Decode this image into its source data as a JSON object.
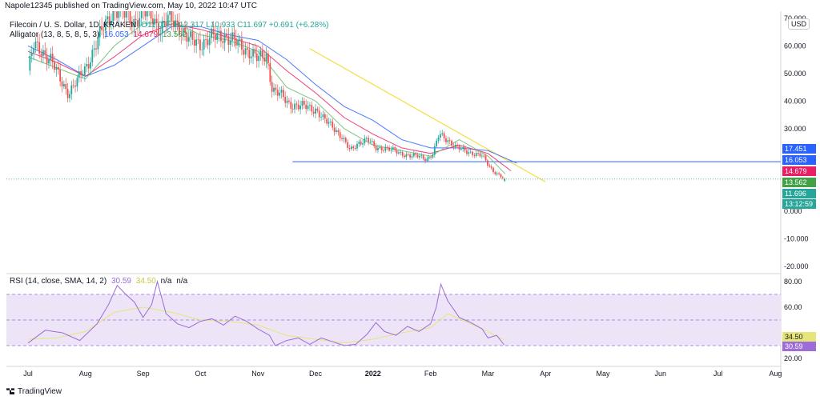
{
  "header": {
    "text": "Napole12345 published on TradingView.com, May 10, 2022 10:47 UTC"
  },
  "footer": {
    "brand": "TradingView"
  },
  "legend": {
    "symbol": "Filecoin / U. S. Dollar, 1D, KRAKEN",
    "ohlc": "O11.016 H12.317 L10.933 C11.697 +0.691 (+6.28%)",
    "alligator_label": "Alligator (13, 8, 5, 8, 5, 3)",
    "alligator_values": [
      "16.053",
      "14.679",
      "13.562"
    ],
    "rsi_label": "RSI (14, close, SMA, 14, 2)",
    "rsi_values": [
      "30.59",
      "34.50",
      "n/a",
      "n/a"
    ]
  },
  "currency_button": "USD",
  "colors": {
    "up": "#26a69a",
    "down": "#ef5350",
    "jaw": "#2962ff",
    "teeth": "#e91e63",
    "lips": "#66bb6a",
    "trendline": "#f5e050",
    "hline": "#2962ff",
    "rsi": "#9c6cd8",
    "rsi_ma": "#e5e57a",
    "rsi_band": "#ede5f7"
  },
  "chart_data": [
    {
      "type": "line",
      "panel": "price",
      "title": "Filecoin / U. S. Dollar, 1D, KRAKEN",
      "y_ticks": [
        "70.000",
        "60.000",
        "50.000",
        "40.000",
        "30.000",
        "0.000",
        "-10.000",
        "-20.000"
      ],
      "ylim": [
        -22,
        72
      ],
      "x_ticks": [
        "Jul",
        "Aug",
        "Sep",
        "Oct",
        "Nov",
        "Dec",
        "2022",
        "Feb",
        "Mar",
        "Apr",
        "May",
        "Jun",
        "Jul",
        "Aug"
      ],
      "price_labels": [
        {
          "text": "17.451",
          "value": 17.451,
          "color": "#2962ff"
        },
        {
          "text": "16.053",
          "value": 16.053,
          "color": "#2962ff"
        },
        {
          "text": "14.679",
          "value": 14.679,
          "color": "#e91e63"
        },
        {
          "text": "13.562",
          "value": 13.562,
          "color": "#43a047"
        },
        {
          "text": "11.696",
          "value": 11.696,
          "color": "#26a69a"
        },
        {
          "text": "13:12:59",
          "value": 9.6,
          "color": "#26a69a"
        }
      ],
      "close_series": [
        {
          "m": 0.0,
          "v": 51
        },
        {
          "m": 0.1,
          "v": 60
        },
        {
          "m": 0.25,
          "v": 58
        },
        {
          "m": 0.4,
          "v": 55
        },
        {
          "m": 0.55,
          "v": 48
        },
        {
          "m": 0.7,
          "v": 43
        },
        {
          "m": 0.85,
          "v": 47
        },
        {
          "m": 1.0,
          "v": 52
        },
        {
          "m": 1.15,
          "v": 59
        },
        {
          "m": 1.3,
          "v": 66
        },
        {
          "m": 1.45,
          "v": 72
        },
        {
          "m": 1.55,
          "v": 73
        },
        {
          "m": 1.7,
          "v": 71
        },
        {
          "m": 1.85,
          "v": 69
        },
        {
          "m": 2.0,
          "v": 72
        },
        {
          "m": 2.15,
          "v": 71
        },
        {
          "m": 2.3,
          "v": 66
        },
        {
          "m": 2.45,
          "v": 70
        },
        {
          "m": 2.6,
          "v": 68
        },
        {
          "m": 2.8,
          "v": 62
        },
        {
          "m": 3.0,
          "v": 61
        },
        {
          "m": 3.2,
          "v": 63
        },
        {
          "m": 3.4,
          "v": 64
        },
        {
          "m": 3.55,
          "v": 62
        },
        {
          "m": 3.7,
          "v": 60
        },
        {
          "m": 3.85,
          "v": 58
        },
        {
          "m": 4.0,
          "v": 55
        },
        {
          "m": 4.15,
          "v": 57
        },
        {
          "m": 4.25,
          "v": 44
        },
        {
          "m": 4.4,
          "v": 42
        },
        {
          "m": 4.55,
          "v": 39
        },
        {
          "m": 4.7,
          "v": 38
        },
        {
          "m": 4.85,
          "v": 38
        },
        {
          "m": 5.0,
          "v": 37
        },
        {
          "m": 5.15,
          "v": 33
        },
        {
          "m": 5.3,
          "v": 31
        },
        {
          "m": 5.45,
          "v": 27
        },
        {
          "m": 5.6,
          "v": 22
        },
        {
          "m": 5.75,
          "v": 25
        },
        {
          "m": 5.9,
          "v": 26
        },
        {
          "m": 6.05,
          "v": 23
        },
        {
          "m": 6.2,
          "v": 23
        },
        {
          "m": 6.35,
          "v": 22
        },
        {
          "m": 6.5,
          "v": 21
        },
        {
          "m": 6.65,
          "v": 20
        },
        {
          "m": 6.8,
          "v": 20
        },
        {
          "m": 6.95,
          "v": 19
        },
        {
          "m": 7.05,
          "v": 21
        },
        {
          "m": 7.15,
          "v": 28
        },
        {
          "m": 7.3,
          "v": 26
        },
        {
          "m": 7.45,
          "v": 23
        },
        {
          "m": 7.6,
          "v": 22
        },
        {
          "m": 7.75,
          "v": 21
        },
        {
          "m": 7.9,
          "v": 20
        },
        {
          "m": 8.0,
          "v": 17
        },
        {
          "m": 8.1,
          "v": 14.5
        },
        {
          "m": 8.2,
          "v": 13
        },
        {
          "m": 8.28,
          "v": 11.7
        }
      ],
      "series": [
        {
          "name": "Alligator Jaw",
          "color": "#2962ff",
          "values": [
            [
              0.0,
              60
            ],
            [
              0.5,
              55
            ],
            [
              1.0,
              49
            ],
            [
              1.5,
              53
            ],
            [
              2.0,
              60
            ],
            [
              2.5,
              67
            ],
            [
              3.0,
              67
            ],
            [
              3.5,
              64
            ],
            [
              4.0,
              62
            ],
            [
              4.5,
              55
            ],
            [
              5.0,
              46
            ],
            [
              5.5,
              38
            ],
            [
              6.0,
              33
            ],
            [
              6.5,
              26
            ],
            [
              7.0,
              23
            ],
            [
              7.5,
              23
            ],
            [
              8.0,
              22
            ],
            [
              8.5,
              17.5
            ]
          ]
        },
        {
          "name": "Alligator Teeth",
          "color": "#e91e63",
          "values": [
            [
              0.0,
              58
            ],
            [
              0.5,
              54
            ],
            [
              1.0,
              49
            ],
            [
              1.5,
              56
            ],
            [
              2.0,
              64
            ],
            [
              2.5,
              68
            ],
            [
              3.0,
              66
            ],
            [
              3.5,
              63
            ],
            [
              4.0,
              60
            ],
            [
              4.5,
              51
            ],
            [
              5.0,
              43
            ],
            [
              5.5,
              34
            ],
            [
              6.0,
              28
            ],
            [
              6.5,
              23
            ],
            [
              7.0,
              21
            ],
            [
              7.5,
              24
            ],
            [
              8.0,
              21
            ],
            [
              8.4,
              14.7
            ]
          ]
        },
        {
          "name": "Alligator Lips",
          "color": "#66bb6a",
          "values": [
            [
              0.0,
              56
            ],
            [
              0.5,
              52
            ],
            [
              1.0,
              48
            ],
            [
              1.5,
              60
            ],
            [
              2.0,
              68
            ],
            [
              2.5,
              69
            ],
            [
              3.0,
              64
            ],
            [
              3.5,
              62
            ],
            [
              4.0,
              58
            ],
            [
              4.5,
              45
            ],
            [
              5.0,
              40
            ],
            [
              5.5,
              30
            ],
            [
              6.0,
              24
            ],
            [
              6.5,
              22
            ],
            [
              7.0,
              20
            ],
            [
              7.5,
              26
            ],
            [
              8.0,
              20
            ],
            [
              8.3,
              13.6
            ]
          ]
        },
        {
          "name": "trendline",
          "color": "#f5e050",
          "values": [
            [
              4.9,
              59
            ],
            [
              9.0,
              10.7
            ]
          ]
        },
        {
          "name": "support",
          "color": "#2962ff",
          "values": [
            [
              4.6,
              18
            ],
            [
              10.0,
              18
            ]
          ]
        }
      ]
    },
    {
      "type": "line",
      "panel": "rsi",
      "title": "RSI (14, close, SMA, 14, 2)",
      "y_ticks": [
        "80.00",
        "60.00",
        "20.00"
      ],
      "ylim": [
        15,
        85
      ],
      "bands": [
        30,
        50,
        70
      ],
      "price_labels": [
        {
          "text": "34.50",
          "value": 34.5,
          "color": "#e5e57a"
        },
        {
          "text": "30.59",
          "value": 30.59,
          "color": "#9c6cd8"
        }
      ],
      "series": [
        {
          "name": "RSI",
          "color": "#9c6cd8",
          "values": [
            [
              0.0,
              32
            ],
            [
              0.3,
              42
            ],
            [
              0.6,
              40
            ],
            [
              0.9,
              34
            ],
            [
              1.2,
              47
            ],
            [
              1.4,
              62
            ],
            [
              1.55,
              77
            ],
            [
              1.7,
              70
            ],
            [
              1.85,
              64
            ],
            [
              2.0,
              52
            ],
            [
              2.15,
              62
            ],
            [
              2.25,
              80
            ],
            [
              2.4,
              55
            ],
            [
              2.6,
              47
            ],
            [
              2.8,
              44
            ],
            [
              3.0,
              49
            ],
            [
              3.2,
              51
            ],
            [
              3.4,
              46
            ],
            [
              3.6,
              53
            ],
            [
              3.8,
              49
            ],
            [
              4.0,
              43
            ],
            [
              4.2,
              38
            ],
            [
              4.3,
              30
            ],
            [
              4.5,
              34
            ],
            [
              4.7,
              36
            ],
            [
              4.9,
              31
            ],
            [
              5.1,
              36
            ],
            [
              5.3,
              33
            ],
            [
              5.5,
              30
            ],
            [
              5.7,
              31
            ],
            [
              5.9,
              39
            ],
            [
              6.05,
              48
            ],
            [
              6.2,
              41
            ],
            [
              6.4,
              38
            ],
            [
              6.6,
              45
            ],
            [
              6.8,
              41
            ],
            [
              7.0,
              47
            ],
            [
              7.1,
              60
            ],
            [
              7.18,
              78
            ],
            [
              7.3,
              65
            ],
            [
              7.5,
              52
            ],
            [
              7.7,
              48
            ],
            [
              7.9,
              43
            ],
            [
              8.0,
              36
            ],
            [
              8.15,
              38
            ],
            [
              8.28,
              30.6
            ]
          ]
        },
        {
          "name": "RSI-based MA",
          "color": "#e5e57a",
          "values": [
            [
              0.0,
              35
            ],
            [
              0.5,
              36
            ],
            [
              1.0,
              41
            ],
            [
              1.5,
              56
            ],
            [
              2.0,
              60
            ],
            [
              2.5,
              56
            ],
            [
              3.0,
              50
            ],
            [
              3.5,
              49
            ],
            [
              4.0,
              46
            ],
            [
              4.5,
              38
            ],
            [
              5.0,
              35
            ],
            [
              5.5,
              32
            ],
            [
              6.0,
              35
            ],
            [
              6.5,
              40
            ],
            [
              7.0,
              44
            ],
            [
              7.3,
              55
            ],
            [
              7.6,
              49
            ],
            [
              8.0,
              41
            ],
            [
              8.28,
              34.5
            ]
          ]
        }
      ]
    }
  ]
}
